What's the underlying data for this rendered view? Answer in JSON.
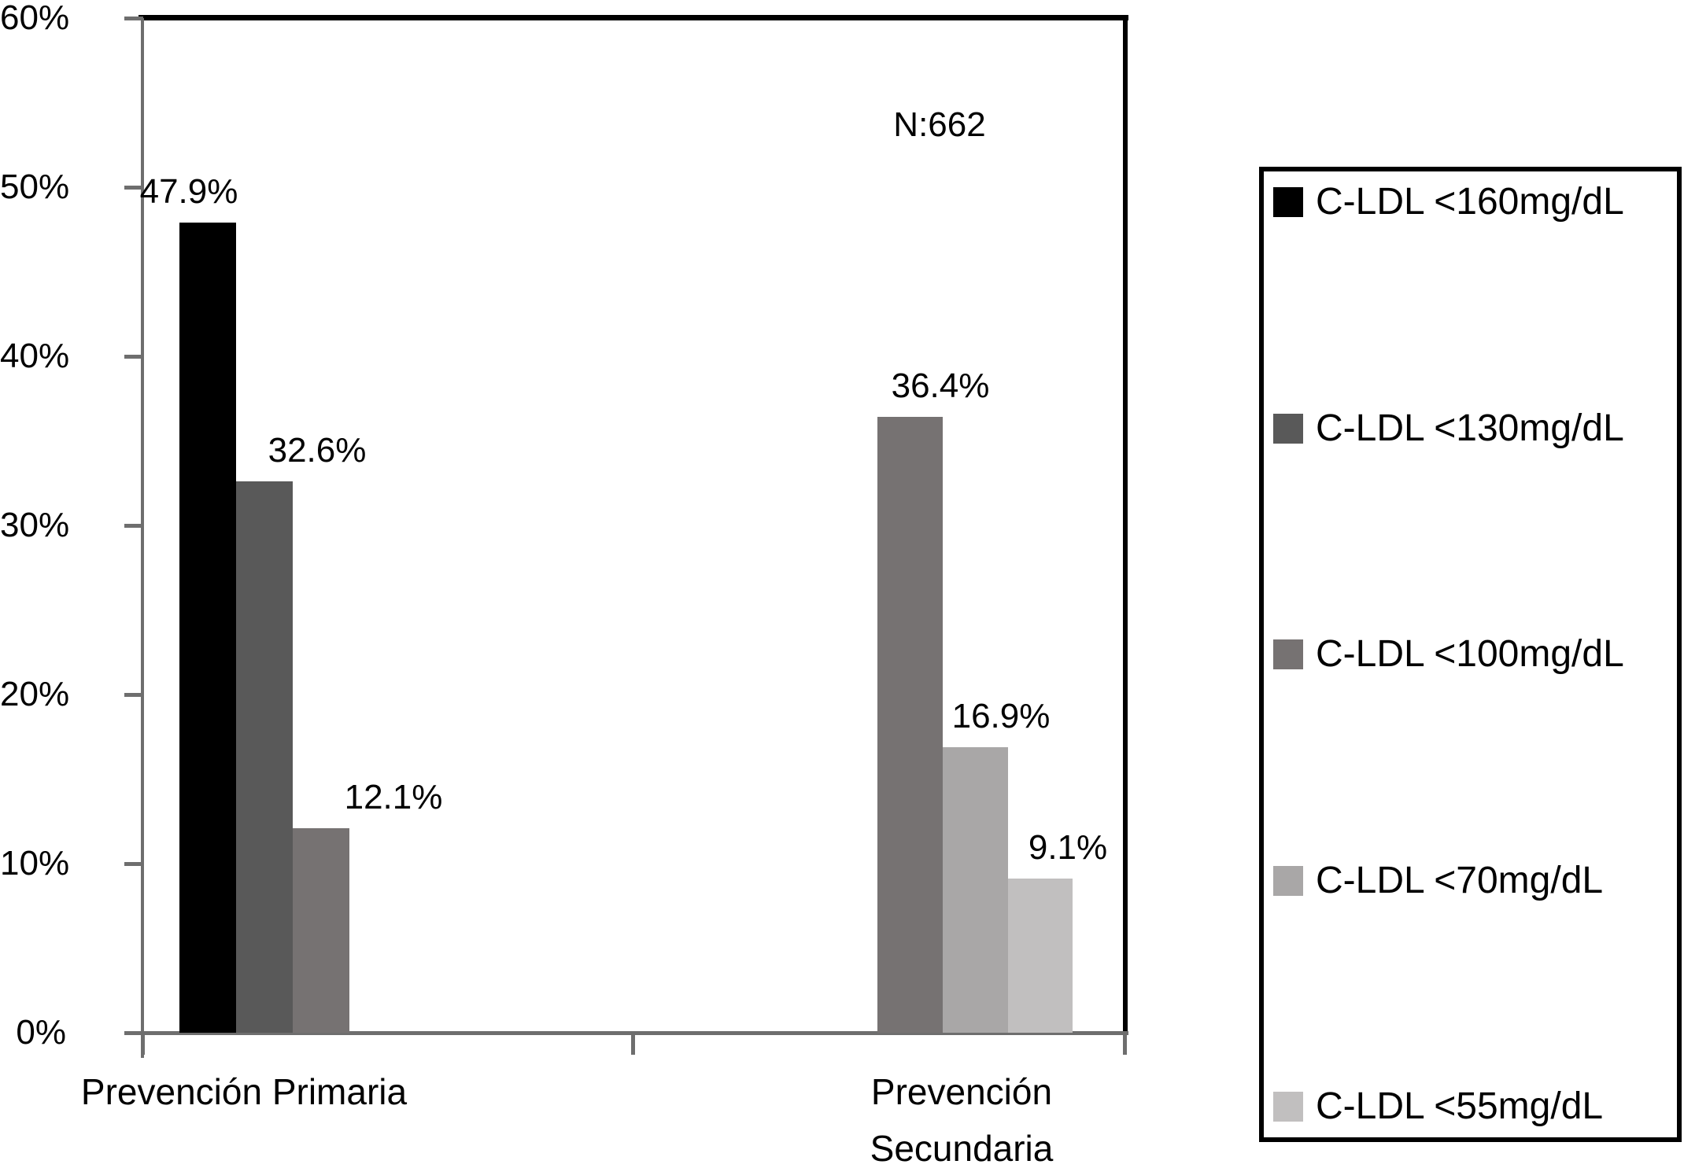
{
  "chart_data": {
    "type": "bar",
    "title": "",
    "annotation": "N:662",
    "xlabel": "",
    "ylabel": "",
    "ylim": [
      0,
      60
    ],
    "ytick_labels": [
      "0%",
      "10%",
      "20%",
      "30%",
      "40%",
      "50%",
      "60%"
    ],
    "grid": false,
    "legend_position": "right",
    "categories": [
      {
        "label": "Prevención Primaria",
        "lines": [
          "Prevención Primaria"
        ]
      },
      {
        "label": "Prevención Secundaria",
        "lines": [
          "Prevención",
          "Secundaria"
        ]
      }
    ],
    "series": [
      {
        "name": "C-LDL <160mg/dL",
        "color": "#000000",
        "values": [
          47.9,
          null
        ]
      },
      {
        "name": "C-LDL <130mg/dL",
        "color": "#595959",
        "values": [
          32.6,
          null
        ]
      },
      {
        "name": "C-LDL <100mg/dL",
        "color": "#767272",
        "values": [
          12.1,
          36.4
        ]
      },
      {
        "name": "C-LDL <70mg/dL",
        "color": "#a9a7a7",
        "values": [
          null,
          16.9
        ]
      },
      {
        "name": "C-LDL <55mg/dL",
        "color": "#c1bfbf",
        "values": [
          null,
          9.1
        ]
      }
    ],
    "bars": [
      {
        "category": 0,
        "series": 0,
        "value": 47.9,
        "label": "47.9%"
      },
      {
        "category": 0,
        "series": 1,
        "value": 32.6,
        "label": "32.6%"
      },
      {
        "category": 0,
        "series": 2,
        "value": 12.1,
        "label": "12.1%"
      },
      {
        "category": 1,
        "series": 2,
        "value": 36.4,
        "label": "36.4%"
      },
      {
        "category": 1,
        "series": 3,
        "value": 16.9,
        "label": "16.9%"
      },
      {
        "category": 1,
        "series": 4,
        "value": 9.1,
        "label": "9.1%"
      }
    ]
  }
}
